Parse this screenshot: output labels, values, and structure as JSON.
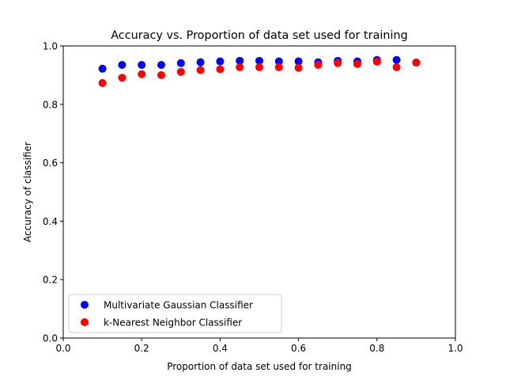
{
  "chart_data": {
    "type": "scatter",
    "title": "Accuracy vs. Proportion of data set used for training",
    "xlabel": "Proportion of data set used for training",
    "ylabel": "Accuracy of classifier",
    "xlim": [
      0.0,
      1.0
    ],
    "ylim": [
      0.0,
      1.0
    ],
    "xticks": [
      "0.0",
      "0.2",
      "0.4",
      "0.6",
      "0.8",
      "1.0"
    ],
    "yticks": [
      "0.0",
      "0.2",
      "0.4",
      "0.6",
      "0.8",
      "1.0"
    ],
    "grid": false,
    "legend_position": "lower-left",
    "x": [
      0.1,
      0.15,
      0.2,
      0.25,
      0.3,
      0.35,
      0.4,
      0.45,
      0.5,
      0.55,
      0.6,
      0.65,
      0.7,
      0.75,
      0.8,
      0.85,
      0.9
    ],
    "series": [
      {
        "name": "Multivariate Gaussian Classifier",
        "color": "#0000ff",
        "values": [
          0.922,
          0.935,
          0.935,
          0.935,
          0.941,
          0.944,
          0.947,
          0.949,
          0.949,
          0.947,
          0.947,
          0.944,
          0.949,
          0.947,
          0.952,
          0.952,
          0.943
        ]
      },
      {
        "name": "k-Nearest Neighbor Classifier",
        "color": "#ff0000",
        "values": [
          0.873,
          0.891,
          0.903,
          0.9,
          0.911,
          0.917,
          0.92,
          0.927,
          0.927,
          0.927,
          0.925,
          0.935,
          0.941,
          0.938,
          0.946,
          0.927,
          0.943
        ]
      }
    ]
  }
}
